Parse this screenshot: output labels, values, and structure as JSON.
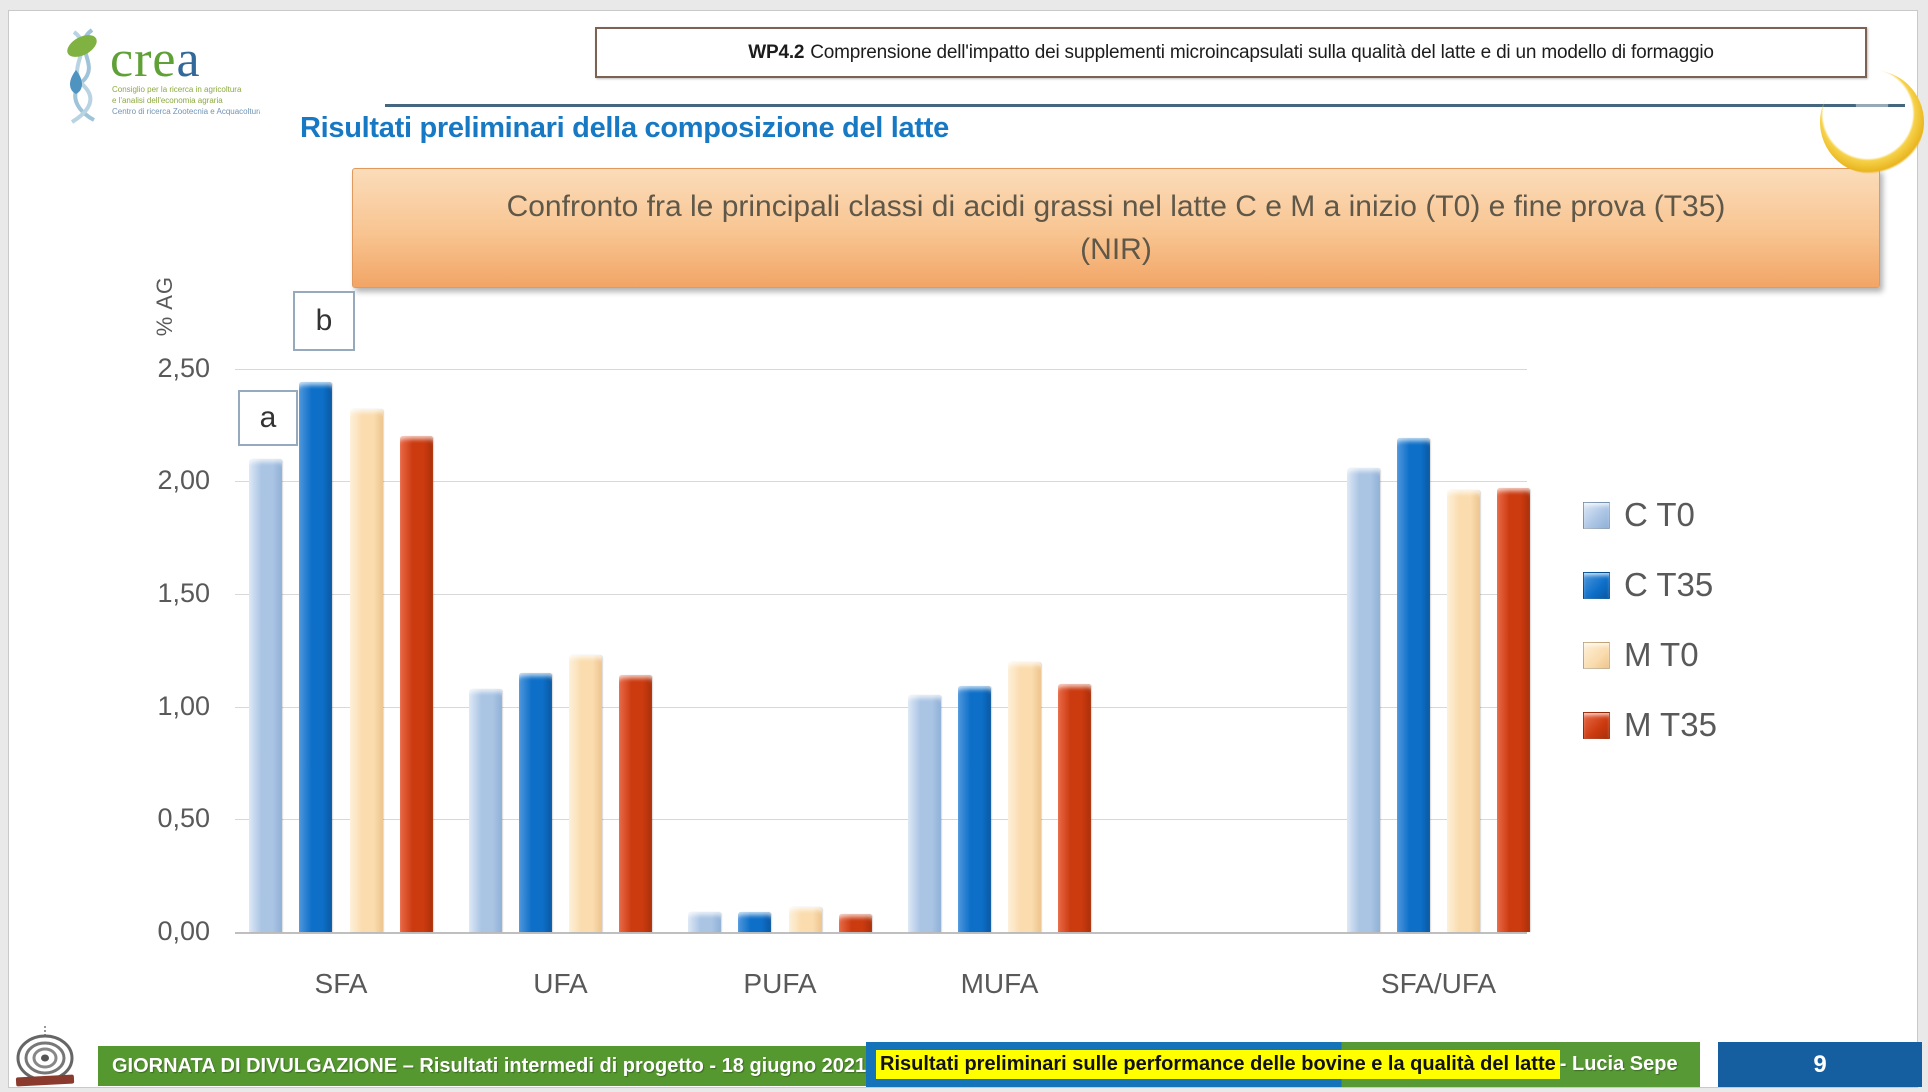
{
  "logo": {
    "brand_green": "cre",
    "brand_blue": "a",
    "sublines": [
      "Consiglio per la ricerca in agricoltura",
      "e l'analisi dell'economia agraria",
      "Centro di ricerca Zootecnia e Acquacoltura"
    ]
  },
  "header": {
    "wp_label": "WP4.2",
    "wp_text": "Comprensione dell'impatto dei supplementi microincapsulati sulla qualità del latte e di un modello di formaggio",
    "title": "Risultati preliminari della composizione del latte"
  },
  "banner": {
    "line1": "Confronto fra le principali classi di acidi grassi nel latte C e M a inizio (T0) e fine prova (T35)",
    "line2": "(NIR)"
  },
  "chart_data": {
    "type": "bar",
    "title": "Confronto fra le principali classi di acidi grassi nel latte C e M a inizio (T0) e fine prova (T35) (NIR)",
    "ylabel": "% AG",
    "xlabel": "",
    "categories": [
      "SFA",
      "UFA",
      "PUFA",
      "MUFA",
      "SFA/UFA"
    ],
    "series": [
      {
        "name": "C T0",
        "color": "#aac4e4",
        "light": "#dde8f5",
        "dark": "#8fb0d6",
        "values": [
          2.1,
          1.08,
          0.09,
          1.05,
          2.06
        ]
      },
      {
        "name": "C T35",
        "color": "#0d6fc8",
        "light": "#4f97dd",
        "dark": "#0a57a2",
        "values": [
          2.44,
          1.15,
          0.09,
          1.09,
          2.19
        ]
      },
      {
        "name": "M T0",
        "color": "#fadcae",
        "light": "#fdf0d9",
        "dark": "#edc48d",
        "values": [
          2.32,
          1.23,
          0.11,
          1.2,
          1.96
        ]
      },
      {
        "name": "M T35",
        "color": "#cc3a10",
        "light": "#e86a47",
        "dark": "#a93009",
        "values": [
          2.2,
          1.14,
          0.08,
          1.1,
          1.97
        ]
      }
    ],
    "ylim": [
      0,
      2.8
    ],
    "ytick_step": 0.5,
    "yticks": [
      "0,00",
      "0,50",
      "1,00",
      "1,50",
      "2,00",
      "2,50"
    ],
    "grid": true,
    "legend_position": "right",
    "annotations": [
      {
        "text": "a",
        "target": "SFA C T0"
      },
      {
        "text": "b",
        "target": "SFA C T35"
      }
    ],
    "category_gap_before_last": true
  },
  "footer": {
    "event": "GIORNATA DI DIVULGAZIONE – Risultati intermedi di progetto  - 18 giugno 2021",
    "talk_highlight": "Risultati preliminari sulle performance delle bovine e la qualità del latte",
    "talk_suffix": " - Lucia Sepe",
    "page": "9"
  },
  "colors": {
    "title_blue": "#1779c4",
    "header_line": "#44667e",
    "banner_top": "#fbdcba",
    "banner_bottom": "#f2a566",
    "footer_green": "#55982f",
    "footer_blue": "#1573b9",
    "highlight_yellow": "#ffff00",
    "page_box_blue": "#155fa0",
    "ring_gold": "#e9b51f",
    "axis_text": "#595959"
  }
}
